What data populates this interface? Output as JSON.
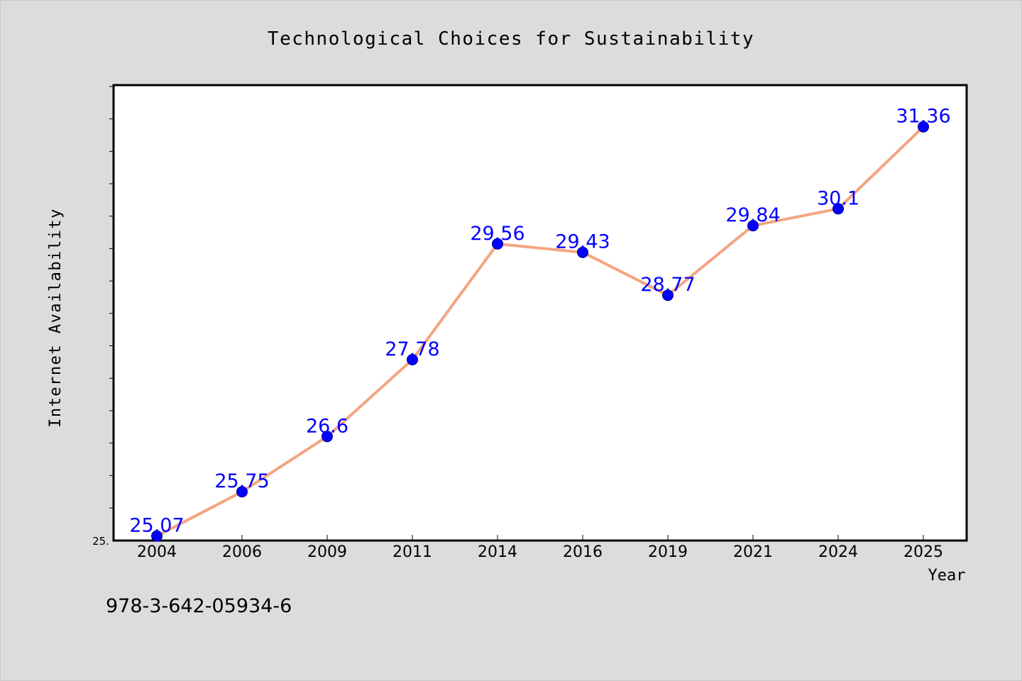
{
  "chart_data": {
    "type": "line",
    "title": "Technological Choices for Sustainability",
    "xlabel": "Year",
    "ylabel": "Internet Availability",
    "categories": [
      "2004",
      "2006",
      "2009",
      "2011",
      "2014",
      "2016",
      "2019",
      "2021",
      "2024",
      "2025"
    ],
    "series": [
      {
        "values": [
          25.07,
          25.75,
          26.6,
          27.78,
          29.56,
          29.43,
          28.77,
          29.84,
          30.1,
          31.36
        ],
        "data_labels": [
          "25.07",
          "25.75",
          "26.6",
          "27.78",
          "29.56",
          "29.43",
          "28.77",
          "29.84",
          "30.1",
          "31.36"
        ]
      }
    ],
    "ylim": [
      25.0,
      32.0
    ],
    "y_tick_label": "25.",
    "grid": false,
    "colors": {
      "line": "#f4a582",
      "marker": "#0000ff",
      "data_label": "#0000ff",
      "background": "#dcdcdc",
      "plot_area": "#ffffff"
    }
  },
  "footer": {
    "isbn": "978-3-642-05934-6"
  }
}
